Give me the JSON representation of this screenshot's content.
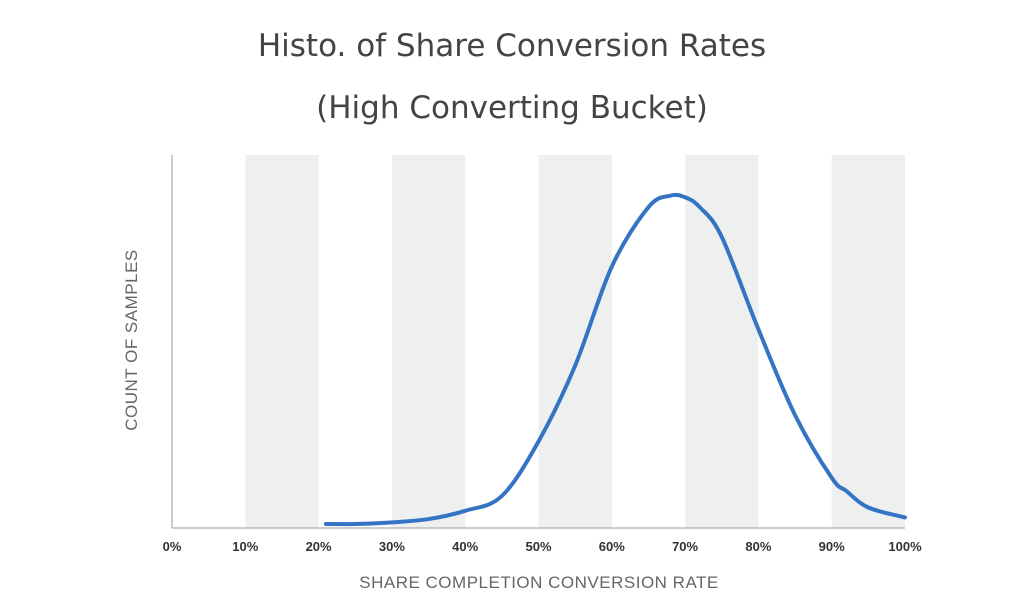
{
  "chart_data": {
    "type": "line",
    "title": "Histo. of Share Conversion Rates",
    "subtitle": "(High Converting Bucket)",
    "xlabel": "SHARE COMPLETION CONVERSION RATE",
    "ylabel": "COUNT OF SAMPLES",
    "x_ticks": [
      "0%",
      "10%",
      "20%",
      "30%",
      "40%",
      "50%",
      "60%",
      "70%",
      "80%",
      "90%",
      "100%"
    ],
    "xlim": [
      0,
      100
    ],
    "ylim": [
      0,
      1
    ],
    "grid": "alternating vertical bands",
    "colors": {
      "line": "#3574c4",
      "band": "#eef0f0",
      "axis": "#bbbbbb"
    },
    "series": [
      {
        "x": [
          21,
          25,
          30,
          35,
          40,
          45,
          50,
          55,
          60,
          65,
          68,
          70,
          72,
          75,
          80,
          85,
          90,
          92,
          95,
          100
        ],
        "y": [
          0.0,
          0.0,
          0.005,
          0.015,
          0.04,
          0.085,
          0.25,
          0.48,
          0.78,
          0.96,
          0.995,
          0.99,
          0.96,
          0.87,
          0.59,
          0.33,
          0.14,
          0.1,
          0.05,
          0.02
        ]
      }
    ]
  }
}
